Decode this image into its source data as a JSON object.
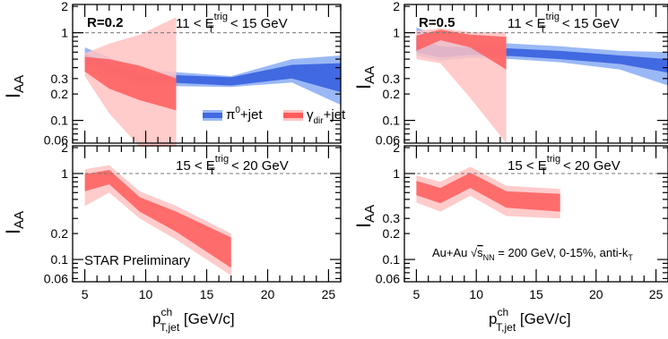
{
  "chart_data": [
    {
      "type": "area",
      "panel": "top-left",
      "label": "R=0.2",
      "kinematics": "11 < E_T^trig < 15 GeV",
      "ylabel": "I_AA",
      "yscale": "log",
      "ylim": [
        0.055,
        2.1
      ],
      "xlim": [
        4,
        26
      ],
      "xticks": [
        5,
        10,
        15,
        20,
        25
      ],
      "yticks": [
        0.06,
        0.1,
        0.2,
        0.3,
        1,
        2
      ],
      "ytick_labels": [
        "0.06",
        "0.1",
        "0.2",
        "0.3",
        "1",
        "2"
      ],
      "legend": {
        "position": "bottom-right",
        "pi0": "π⁰+jet",
        "gamma": "γ_dir+jet"
      },
      "series": [
        {
          "name": "π⁰+jet",
          "color": "#4169e1",
          "x": [
            5,
            9.5,
            17,
            22,
            26
          ],
          "center": [
            0.5,
            0.31,
            0.28,
            0.36,
            0.31
          ],
          "sys_low": [
            0.44,
            0.28,
            0.25,
            0.3,
            0.21
          ],
          "sys_high": [
            0.57,
            0.34,
            0.31,
            0.43,
            0.45
          ],
          "tot_low": [
            0.36,
            0.25,
            0.24,
            0.27,
            0.15
          ],
          "tot_high": [
            0.68,
            0.38,
            0.32,
            0.5,
            0.55
          ]
        },
        {
          "name": "γ_dir+jet",
          "color": "#ff5555",
          "x": [
            5,
            7,
            9.5,
            12.5
          ],
          "center": [
            0.44,
            0.34,
            0.27,
            0.19
          ],
          "sys_low": [
            0.36,
            0.23,
            0.17,
            0.13
          ],
          "sys_high": [
            0.53,
            0.5,
            0.42,
            0.3
          ],
          "tot_low": [
            0.32,
            0.12,
            0.05,
            0.05
          ],
          "tot_high": [
            0.58,
            0.75,
            0.95,
            1.5
          ]
        }
      ]
    },
    {
      "type": "area",
      "panel": "bottom-left",
      "kinematics": "15 < E_T^trig < 20 GeV",
      "ylabel": "I_AA",
      "xlabel": "p_T,jet^ch [GeV/c]",
      "yscale": "log",
      "ylim": [
        0.055,
        2.1
      ],
      "xlim": [
        4,
        26
      ],
      "xticks": [
        5,
        10,
        15,
        20,
        25
      ],
      "yticks": [
        0.06,
        0.1,
        0.2,
        1,
        2
      ],
      "ytick_labels": [
        "0.06",
        "0.1",
        "0.2",
        "1",
        "2"
      ],
      "annotation": "STAR Preliminary",
      "series": [
        {
          "name": "γ_dir+jet",
          "color": "#ff5555",
          "x": [
            5,
            7,
            9.5,
            12.5,
            17
          ],
          "center": [
            0.8,
            0.92,
            0.45,
            0.28,
            0.12
          ],
          "sys_low": [
            0.62,
            0.75,
            0.36,
            0.21,
            0.08
          ],
          "sys_high": [
            0.98,
            1.1,
            0.53,
            0.36,
            0.18
          ],
          "tot_low": [
            0.42,
            0.6,
            0.3,
            0.17,
            0.065
          ],
          "tot_high": [
            1.12,
            1.25,
            0.62,
            0.42,
            0.2
          ]
        }
      ]
    },
    {
      "type": "area",
      "panel": "top-right",
      "label": "R=0.5",
      "kinematics": "11 < E_T^trig < 15 GeV",
      "ylabel": "I_AA",
      "yscale": "log",
      "ylim": [
        0.055,
        2.1
      ],
      "xlim": [
        4,
        26
      ],
      "xticks": [
        5,
        10,
        15,
        20,
        25
      ],
      "yticks": [
        0.06,
        0.1,
        0.2,
        0.3,
        1,
        2
      ],
      "ytick_labels": [
        "0.06",
        "0.1",
        "0.2",
        "0.3",
        "1",
        "2"
      ],
      "series": [
        {
          "name": "π⁰+jet",
          "color": "#4169e1",
          "x": [
            5,
            7,
            9.5,
            13,
            17,
            22,
            26
          ],
          "center": [
            0.7,
            0.6,
            0.62,
            0.6,
            0.56,
            0.5,
            0.44
          ],
          "sys_low": [
            0.6,
            0.52,
            0.56,
            0.54,
            0.5,
            0.44,
            0.35
          ],
          "sys_high": [
            0.85,
            0.7,
            0.68,
            0.66,
            0.62,
            0.55,
            0.5
          ],
          "tot_low": [
            0.55,
            0.48,
            0.52,
            0.5,
            0.46,
            0.38,
            0.25
          ],
          "tot_high": [
            1.15,
            0.9,
            0.8,
            0.75,
            0.7,
            0.62,
            0.6
          ]
        },
        {
          "name": "γ_dir+jet",
          "color": "#ff5555",
          "x": [
            5,
            7,
            9.5,
            12.5
          ],
          "center": [
            0.8,
            0.95,
            0.8,
            0.6
          ],
          "sys_low": [
            0.62,
            0.82,
            0.68,
            0.38
          ],
          "sys_high": [
            0.93,
            1.08,
            0.95,
            0.9
          ],
          "tot_low": [
            0.5,
            0.45,
            0.18,
            0.055
          ],
          "tot_high": [
            1.05,
            1.12,
            1.02,
            1.02
          ]
        }
      ]
    },
    {
      "type": "area",
      "panel": "bottom-right",
      "kinematics": "15 < E_T^trig < 20 GeV",
      "ylabel": "I_AA",
      "xlabel": "p_T,jet^ch [GeV/c]",
      "yscale": "log",
      "ylim": [
        0.055,
        2.1
      ],
      "xlim": [
        4,
        26
      ],
      "xticks": [
        5,
        10,
        15,
        20,
        25
      ],
      "yticks": [
        0.06,
        0.1,
        0.2,
        0.3,
        1,
        2
      ],
      "ytick_labels": [
        "0.06",
        "0.1",
        "0.2",
        "0.3",
        "1",
        "2"
      ],
      "annotation": "Au+Au √s_NN = 200 GeV, 0-15%, anti-k_T",
      "series": [
        {
          "name": "γ_dir+jet",
          "color": "#ff5555",
          "x": [
            5,
            7,
            9.5,
            12.5,
            17
          ],
          "center": [
            0.68,
            0.56,
            0.85,
            0.5,
            0.46
          ],
          "sys_low": [
            0.56,
            0.45,
            0.68,
            0.4,
            0.36
          ],
          "sys_high": [
            0.82,
            0.68,
            1.02,
            0.62,
            0.58
          ],
          "tot_low": [
            0.46,
            0.36,
            0.55,
            0.32,
            0.3
          ],
          "tot_high": [
            0.95,
            0.8,
            1.2,
            0.72,
            0.66
          ]
        }
      ]
    }
  ],
  "text": {
    "ylabel_main": "I",
    "ylabel_sub": "AA",
    "xlabel_main": "p",
    "xlabel_sup": "ch",
    "xlabel_sub": "T,jet",
    "xlabel_unit": " [GeV/c]",
    "kin_a": "11 < E",
    "kin_b": "15 < E",
    "kin_sub": "T",
    "kin_sup": "trig",
    "kin_tail_a": " < 15 GeV",
    "kin_tail_b": " < 20 GeV",
    "r02": "R=0.2",
    "r05": "R=0.5",
    "legend_pi0": "π",
    "legend_pi0_sup": "0",
    "legend_pi0_tail": "+jet",
    "legend_gamma": "γ",
    "legend_gamma_sub": "dir",
    "legend_gamma_tail": "+jet",
    "star": "STAR Preliminary",
    "auau_a": "Au+Au ",
    "auau_sqrt": "√",
    "auau_s": "s",
    "auau_nn": "NN",
    "auau_b": " = 200 GeV, 0-15%, anti-k",
    "auau_t": "T"
  }
}
